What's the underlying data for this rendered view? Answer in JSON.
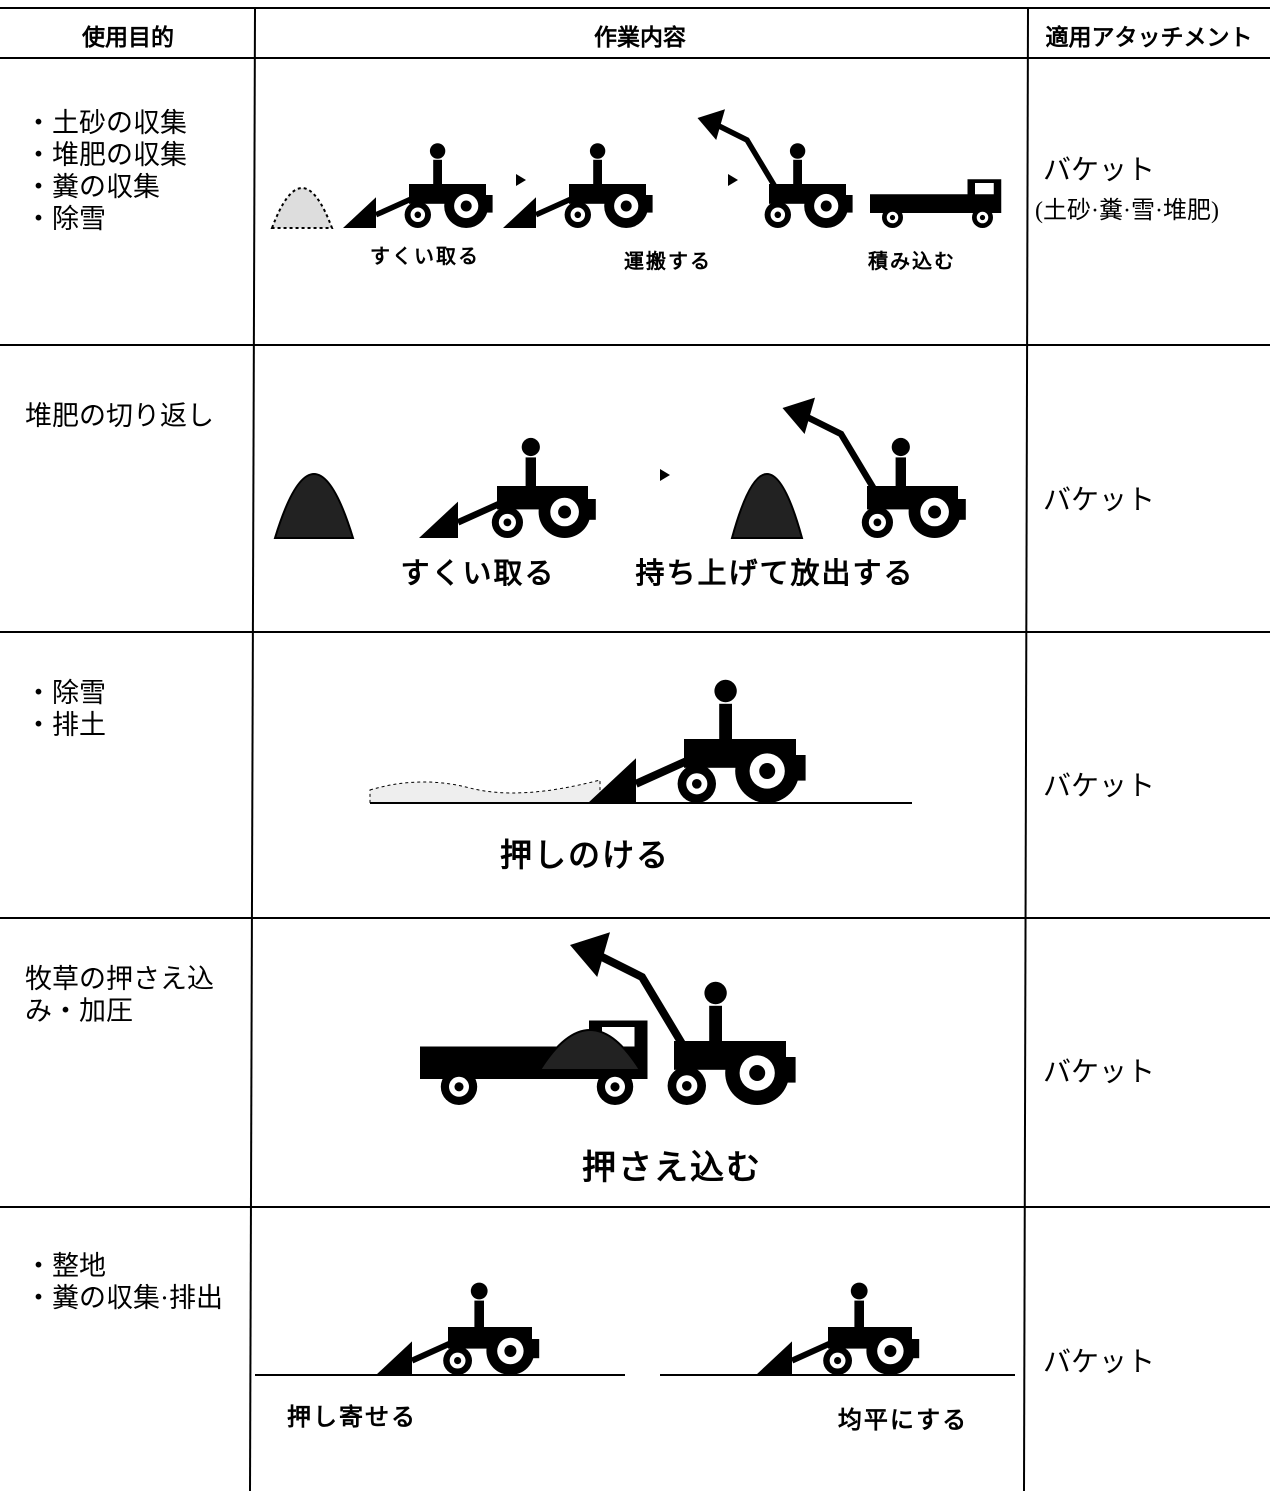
{
  "header": [
    "使用目的",
    "作業内容",
    "適用アタッチメント"
  ],
  "rows": [
    {
      "purpose": [
        "・土砂の収集",
        "・堆肥の収集",
        "・糞の収集",
        "・除雪"
      ],
      "captions": [
        "すくい取る",
        "運搬する",
        "積み込む"
      ],
      "attachment": "バケット",
      "attachment_note": "(土砂·糞·雪·堆肥)"
    },
    {
      "purpose": [
        "堆肥の切り返し"
      ],
      "captions": [
        "すくい取る",
        "持ち上げて放出する"
      ],
      "attachment": "バケット"
    },
    {
      "purpose": [
        "・除雪",
        "・排土"
      ],
      "captions": [
        "押しのける"
      ],
      "attachment": "バケット"
    },
    {
      "purpose": [
        "牧草の押さえ込",
        "み・加圧"
      ],
      "captions": [
        "押さえ込む"
      ],
      "attachment": "バケット"
    },
    {
      "purpose": [
        "・整地",
        "・糞の収集·排出"
      ],
      "captions": [
        "押し寄せる",
        "均平にする"
      ],
      "attachment": "バケット"
    }
  ]
}
